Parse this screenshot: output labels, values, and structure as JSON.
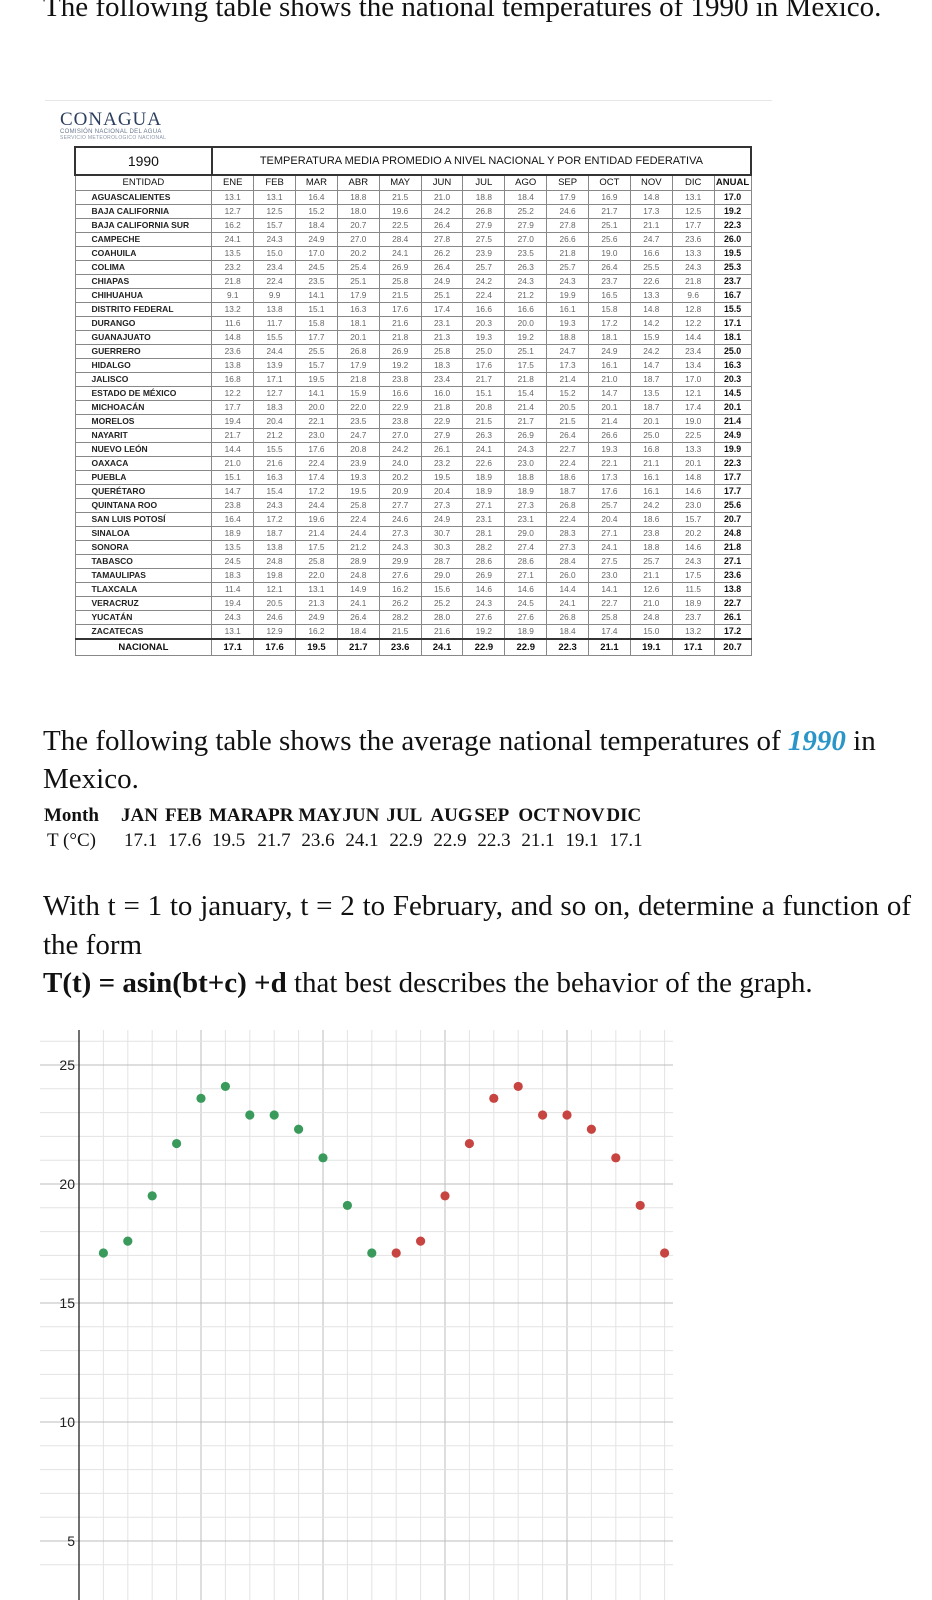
{
  "intro_text": "The following table shows the national temperatures of 1990 in Mexico.",
  "logo": {
    "name": "CONAGUA",
    "subtitle": "COMISIÓN NACIONAL DEL AGUA",
    "subtitle2": "SERVICIO METEOROLÓGICO NACIONAL"
  },
  "temperature_table": {
    "year": "1990",
    "title": "TEMPERATURA MEDIA PROMEDIO A NIVEL NACIONAL Y POR ENTIDAD FEDERATIVA",
    "headers": [
      "ENTIDAD",
      "ENE",
      "FEB",
      "MAR",
      "ABR",
      "MAY",
      "JUN",
      "JUL",
      "AGO",
      "SEP",
      "OCT",
      "NOV",
      "DIC",
      "ANUAL"
    ],
    "rows": [
      [
        "AGUASCALIENTES",
        "13.1",
        "13.1",
        "16.4",
        "18.8",
        "21.5",
        "21.0",
        "18.8",
        "18.4",
        "17.9",
        "16.9",
        "14.8",
        "13.1",
        "17.0"
      ],
      [
        "BAJA CALIFORNIA",
        "12.7",
        "12.5",
        "15.2",
        "18.0",
        "19.6",
        "24.2",
        "26.8",
        "25.2",
        "24.6",
        "21.7",
        "17.3",
        "12.5",
        "19.2"
      ],
      [
        "BAJA CALIFORNIA SUR",
        "16.2",
        "15.7",
        "18.4",
        "20.7",
        "22.5",
        "26.4",
        "27.9",
        "27.9",
        "27.8",
        "25.1",
        "21.1",
        "17.7",
        "22.3"
      ],
      [
        "CAMPECHE",
        "24.1",
        "24.3",
        "24.9",
        "27.0",
        "28.4",
        "27.8",
        "27.5",
        "27.0",
        "26.6",
        "25.6",
        "24.7",
        "23.6",
        "26.0"
      ],
      [
        "COAHUILA",
        "13.5",
        "15.0",
        "17.0",
        "20.2",
        "24.1",
        "26.2",
        "23.9",
        "23.5",
        "21.8",
        "19.0",
        "16.6",
        "13.3",
        "19.5"
      ],
      [
        "COLIMA",
        "23.2",
        "23.4",
        "24.5",
        "25.4",
        "26.9",
        "26.4",
        "25.7",
        "26.3",
        "25.7",
        "26.4",
        "25.5",
        "24.3",
        "25.3"
      ],
      [
        "CHIAPAS",
        "21.8",
        "22.4",
        "23.5",
        "25.1",
        "25.8",
        "24.9",
        "24.2",
        "24.3",
        "24.3",
        "23.7",
        "22.6",
        "21.8",
        "23.7"
      ],
      [
        "CHIHUAHUA",
        "9.1",
        "9.9",
        "14.1",
        "17.9",
        "21.5",
        "25.1",
        "22.4",
        "21.2",
        "19.9",
        "16.5",
        "13.3",
        "9.6",
        "16.7"
      ],
      [
        "DISTRITO FEDERAL",
        "13.2",
        "13.8",
        "15.1",
        "16.3",
        "17.6",
        "17.4",
        "16.6",
        "16.6",
        "16.1",
        "15.8",
        "14.8",
        "12.8",
        "15.5"
      ],
      [
        "DURANGO",
        "11.6",
        "11.7",
        "15.8",
        "18.1",
        "21.6",
        "23.1",
        "20.3",
        "20.0",
        "19.3",
        "17.2",
        "14.2",
        "12.2",
        "17.1"
      ],
      [
        "GUANAJUATO",
        "14.8",
        "15.5",
        "17.7",
        "20.1",
        "21.8",
        "21.3",
        "19.3",
        "19.2",
        "18.8",
        "18.1",
        "15.9",
        "14.4",
        "18.1"
      ],
      [
        "GUERRERO",
        "23.6",
        "24.4",
        "25.5",
        "26.8",
        "26.9",
        "25.8",
        "25.0",
        "25.1",
        "24.7",
        "24.9",
        "24.2",
        "23.4",
        "25.0"
      ],
      [
        "HIDALGO",
        "13.8",
        "13.9",
        "15.7",
        "17.9",
        "19.2",
        "18.3",
        "17.6",
        "17.5",
        "17.3",
        "16.1",
        "14.7",
        "13.4",
        "16.3"
      ],
      [
        "JALISCO",
        "16.8",
        "17.1",
        "19.5",
        "21.8",
        "23.8",
        "23.4",
        "21.7",
        "21.8",
        "21.4",
        "21.0",
        "18.7",
        "17.0",
        "20.3"
      ],
      [
        "ESTADO DE MÉXICO",
        "12.2",
        "12.7",
        "14.1",
        "15.9",
        "16.6",
        "16.0",
        "15.1",
        "15.4",
        "15.2",
        "14.7",
        "13.5",
        "12.1",
        "14.5"
      ],
      [
        "MICHOACÁN",
        "17.7",
        "18.3",
        "20.0",
        "22.0",
        "22.9",
        "21.8",
        "20.8",
        "21.4",
        "20.5",
        "20.1",
        "18.7",
        "17.4",
        "20.1"
      ],
      [
        "MORELOS",
        "19.4",
        "20.4",
        "22.1",
        "23.5",
        "23.8",
        "22.9",
        "21.5",
        "21.7",
        "21.5",
        "21.4",
        "20.1",
        "19.0",
        "21.4"
      ],
      [
        "NAYARIT",
        "21.7",
        "21.2",
        "23.0",
        "24.7",
        "27.0",
        "27.9",
        "26.3",
        "26.9",
        "26.4",
        "26.6",
        "25.0",
        "22.5",
        "24.9"
      ],
      [
        "NUEVO LEÓN",
        "14.4",
        "15.5",
        "17.6",
        "20.8",
        "24.2",
        "26.1",
        "24.1",
        "24.3",
        "22.7",
        "19.3",
        "16.8",
        "13.3",
        "19.9"
      ],
      [
        "OAXACA",
        "21.0",
        "21.6",
        "22.4",
        "23.9",
        "24.0",
        "23.2",
        "22.6",
        "23.0",
        "22.4",
        "22.1",
        "21.1",
        "20.1",
        "22.3"
      ],
      [
        "PUEBLA",
        "15.1",
        "16.3",
        "17.4",
        "19.3",
        "20.2",
        "19.5",
        "18.9",
        "18.8",
        "18.6",
        "17.3",
        "16.1",
        "14.8",
        "17.7"
      ],
      [
        "QUERÉTARO",
        "14.7",
        "15.4",
        "17.2",
        "19.5",
        "20.9",
        "20.4",
        "18.9",
        "18.9",
        "18.7",
        "17.6",
        "16.1",
        "14.6",
        "17.7"
      ],
      [
        "QUINTANA ROO",
        "23.8",
        "24.3",
        "24.4",
        "25.8",
        "27.7",
        "27.3",
        "27.1",
        "27.3",
        "26.8",
        "25.7",
        "24.2",
        "23.0",
        "25.6"
      ],
      [
        "SAN LUIS POTOSÍ",
        "16.4",
        "17.2",
        "19.6",
        "22.4",
        "24.6",
        "24.9",
        "23.1",
        "23.1",
        "22.4",
        "20.4",
        "18.6",
        "15.7",
        "20.7"
      ],
      [
        "SINALOA",
        "18.9",
        "18.7",
        "21.4",
        "24.4",
        "27.3",
        "30.7",
        "28.1",
        "29.0",
        "28.3",
        "27.1",
        "23.8",
        "20.2",
        "24.8"
      ],
      [
        "SONORA",
        "13.5",
        "13.8",
        "17.5",
        "21.2",
        "24.3",
        "30.3",
        "28.2",
        "27.4",
        "27.3",
        "24.1",
        "18.8",
        "14.6",
        "21.8"
      ],
      [
        "TABASCO",
        "24.5",
        "24.8",
        "25.8",
        "28.9",
        "29.9",
        "28.7",
        "28.6",
        "28.6",
        "28.4",
        "27.5",
        "25.7",
        "24.3",
        "27.1"
      ],
      [
        "TAMAULIPAS",
        "18.3",
        "19.8",
        "22.0",
        "24.8",
        "27.6",
        "29.0",
        "26.9",
        "27.1",
        "26.0",
        "23.0",
        "21.1",
        "17.5",
        "23.6"
      ],
      [
        "TLAXCALA",
        "11.4",
        "12.1",
        "13.1",
        "14.9",
        "16.2",
        "15.6",
        "14.6",
        "14.6",
        "14.4",
        "14.1",
        "12.6",
        "11.5",
        "13.8"
      ],
      [
        "VERACRUZ",
        "19.4",
        "20.5",
        "21.3",
        "24.1",
        "26.2",
        "25.2",
        "24.3",
        "24.5",
        "24.1",
        "22.7",
        "21.0",
        "18.9",
        "22.7"
      ],
      [
        "YUCATÁN",
        "24.3",
        "24.6",
        "24.9",
        "26.4",
        "28.2",
        "28.0",
        "27.6",
        "27.6",
        "26.8",
        "25.8",
        "24.8",
        "23.7",
        "26.1"
      ],
      [
        "ZACATECAS",
        "13.1",
        "12.9",
        "16.2",
        "18.4",
        "21.5",
        "21.6",
        "19.2",
        "18.9",
        "18.4",
        "17.4",
        "15.0",
        "13.2",
        "17.2"
      ]
    ],
    "national": [
      "NACIONAL",
      "17.1",
      "17.6",
      "19.5",
      "21.7",
      "23.6",
      "24.1",
      "22.9",
      "22.9",
      "22.3",
      "21.1",
      "19.1",
      "17.1",
      "20.7"
    ]
  },
  "heading2": {
    "before": "The following table shows the average national temperatures of ",
    "year": "1990",
    "after": " in Mexico."
  },
  "avg_table": {
    "header": [
      "Month",
      "JAN",
      "FEB",
      "MAR",
      "APR",
      "MAY",
      "JUN",
      "JUL",
      "AUG",
      "SEP",
      "OCT",
      "NOV",
      "DIC"
    ],
    "values": [
      "T (°C)",
      "17.1",
      "17.6",
      "19.5",
      "21.7",
      "23.6",
      "24.1",
      "22.9",
      "22.9",
      "22.3",
      "21.1",
      "19.1",
      "17.1"
    ]
  },
  "problem": {
    "line1": "With t = 1 to january, t = 2 to February, and so on, determine a function of the form",
    "formula": "T(t) = asin(bt+c) +d",
    "line2": " that best describes the behavior of the graph."
  },
  "chart_data": {
    "type": "scatter",
    "ylim": [
      3.5,
      26
    ],
    "y_ticks": [
      5,
      10,
      15,
      20,
      25
    ],
    "y_tick_labels": [
      "5",
      "10",
      "15",
      "20",
      "25"
    ],
    "series": [
      {
        "color": "#3a9a5b",
        "points": [
          [
            1,
            17.1
          ],
          [
            2,
            17.6
          ],
          [
            3,
            19.5
          ],
          [
            4,
            21.7
          ],
          [
            5,
            23.6
          ],
          [
            6,
            24.1
          ],
          [
            7,
            22.9
          ],
          [
            8,
            22.9
          ],
          [
            9,
            22.3
          ],
          [
            10,
            21.1
          ],
          [
            11,
            19.1
          ],
          [
            12,
            17.1
          ]
        ]
      },
      {
        "color": "#c74440",
        "points": [
          [
            13,
            17.1
          ],
          [
            14,
            17.6
          ],
          [
            15,
            19.5
          ],
          [
            16,
            21.7
          ],
          [
            17,
            23.6
          ],
          [
            18,
            24.1
          ],
          [
            19,
            22.9
          ],
          [
            20,
            22.9
          ],
          [
            21,
            22.3
          ],
          [
            22,
            21.1
          ],
          [
            23,
            19.1
          ],
          [
            24,
            17.1
          ]
        ]
      }
    ]
  }
}
